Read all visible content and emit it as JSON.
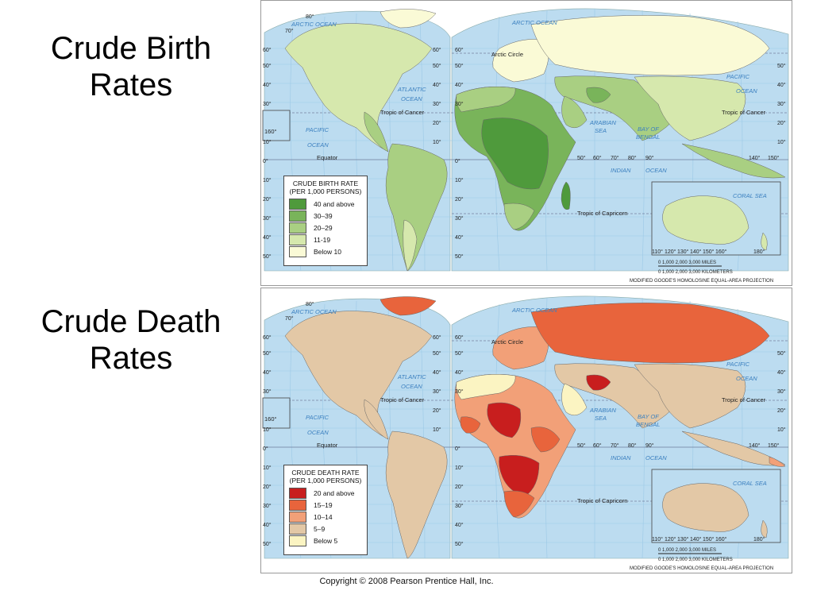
{
  "slide": {
    "title1_line1": "Crude Birth",
    "title1_line2": "Rates",
    "title2_line1": "Crude Death",
    "title2_line2": "Rates",
    "copyright": "Copyright © 2008 Pearson Prentice Hall, Inc."
  },
  "maps": [
    {
      "legend": {
        "title_line1": "CRUDE BIRTH RATE",
        "title_line2": "(PER 1,000 PERSONS)",
        "items": [
          {
            "label": "40 and above",
            "color": "#4f9a3c"
          },
          {
            "label": "30–39",
            "color": "#79b45a"
          },
          {
            "label": "20–29",
            "color": "#a9cf82"
          },
          {
            "label": "11-19",
            "color": "#d6e8ad"
          },
          {
            "label": "Below 10",
            "color": "#fafad6"
          }
        ]
      },
      "land_color": "#d6e8ad"
    },
    {
      "legend": {
        "title_line1": "CRUDE DEATH RATE",
        "title_line2": "(PER 1,000 PERSONS)",
        "items": [
          {
            "label": "20 and above",
            "color": "#c81e1e"
          },
          {
            "label": "15–19",
            "color": "#e8643c"
          },
          {
            "label": "10–14",
            "color": "#f2a078"
          },
          {
            "label": "5–9",
            "color": "#e3c8a6"
          },
          {
            "label": "Below 5",
            "color": "#fbf4c2"
          }
        ]
      },
      "land_color": "#e3c8a6"
    }
  ],
  "map_labels": {
    "arctic_circle": "Arctic Circle",
    "tropic_cancer": "Tropic of Cancer",
    "tropic_capricorn": "Tropic of Capricorn",
    "equator": "Equator",
    "pacific": "PACIFIC",
    "ocean": "OCEAN",
    "atlantic": "ATLANTIC",
    "indian": "INDIAN",
    "arabian": "ARABIAN",
    "sea": "SEA",
    "bay_of": "BAY OF",
    "bengal": "BENGAL",
    "arctic_ocean": "ARCTIC OCEAN",
    "coral_sea": "CORAL SEA",
    "scale_miles": "0    1,000    2,000    3,000 MILES",
    "scale_km": "0   1,000   2,000   3,000 KILOMETERS",
    "projection": "MODIFIED GOODE'S HOMOLOSINE EQUAL-AREA PROJECTION",
    "lat_left": [
      "80°",
      "70°",
      "60°",
      "50°",
      "40°",
      "30°",
      "20°",
      "10°",
      "0°",
      "10°",
      "20°",
      "30°",
      "40°",
      "50°"
    ],
    "lat_right": [
      "60°",
      "50°",
      "40°",
      "30°",
      "20°",
      "10°"
    ],
    "inset_lon": [
      "110°",
      "120°",
      "130°",
      "140°",
      "150°",
      "160°",
      "180°"
    ],
    "lon_bottom": [
      "50°",
      "60°",
      "70°",
      "80°",
      "90°",
      "140°",
      "150°"
    ],
    "deg_160": "160°"
  }
}
